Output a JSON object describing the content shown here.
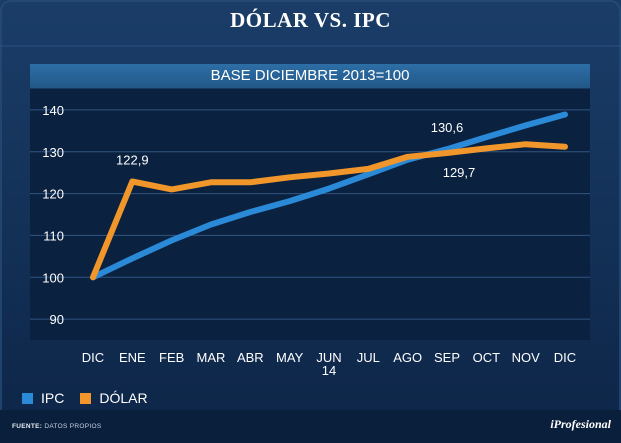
{
  "header": {
    "title": "DÓLAR VS. IPC",
    "subtitle": "BASE DICIEMBRE 2013=100"
  },
  "footer": {
    "source_label": "FUENTE:",
    "source_value": "DATOS PROPIOS",
    "brand": "iProfesional"
  },
  "colors": {
    "ipc": "#2a8ad8",
    "dolar": "#f0962a",
    "background": "#0f2a4d",
    "plot": "#0b2140"
  },
  "chart_data": {
    "type": "line",
    "title": "DÓLAR VS. IPC",
    "subtitle": "BASE DICIEMBRE 2013=100",
    "xlabel": "",
    "ylabel": "",
    "categories": [
      "DIC",
      "ENE",
      "FEB",
      "MAR",
      "ABR",
      "MAY",
      "JUN 14",
      "JUL",
      "AGO",
      "SEP",
      "OCT",
      "NOV",
      "DIC"
    ],
    "category_labels": [
      [
        "DIC"
      ],
      [
        "ENE"
      ],
      [
        "FEB"
      ],
      [
        "MAR"
      ],
      [
        "ABR"
      ],
      [
        "MAY"
      ],
      [
        "JUN",
        "14"
      ],
      [
        "JUL"
      ],
      [
        "AGO"
      ],
      [
        "SEP"
      ],
      [
        "OCT"
      ],
      [
        "NOV"
      ],
      [
        "DIC"
      ]
    ],
    "ylim": [
      85,
      145
    ],
    "yticks": [
      90,
      100,
      110,
      120,
      130,
      140
    ],
    "grid": true,
    "legend": "bottom-left",
    "series": [
      {
        "name": "IPC",
        "color": "#2a8ad8",
        "values": [
          100,
          104.5,
          108.8,
          112.6,
          115.6,
          118.2,
          121.2,
          124.6,
          128.1,
          130.6,
          133.5,
          136.3,
          138.9
        ]
      },
      {
        "name": "DÓLAR",
        "color": "#f0962a",
        "values": [
          100,
          122.9,
          121.0,
          122.7,
          122.7,
          123.9,
          124.8,
          125.9,
          128.8,
          129.7,
          130.8,
          131.8,
          131.2
        ]
      }
    ],
    "annotations": [
      {
        "text": "122,9",
        "series": "DÓLAR",
        "category": "ENE",
        "value": 122.9
      },
      {
        "text": "130,6",
        "series": "IPC",
        "category": "SEP",
        "value": 130.6
      },
      {
        "text": "129,7",
        "series": "DÓLAR",
        "category": "SEP",
        "value": 129.7
      }
    ]
  }
}
